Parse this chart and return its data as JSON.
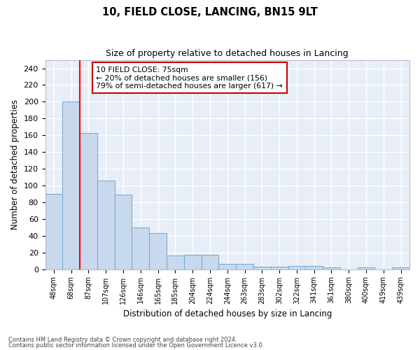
{
  "title": "10, FIELD CLOSE, LANCING, BN15 9LT",
  "subtitle": "Size of property relative to detached houses in Lancing",
  "xlabel": "Distribution of detached houses by size in Lancing",
  "ylabel": "Number of detached properties",
  "categories": [
    "48sqm",
    "68sqm",
    "87sqm",
    "107sqm",
    "126sqm",
    "146sqm",
    "165sqm",
    "185sqm",
    "204sqm",
    "224sqm",
    "244sqm",
    "263sqm",
    "283sqm",
    "302sqm",
    "322sqm",
    "341sqm",
    "361sqm",
    "380sqm",
    "400sqm",
    "419sqm",
    "439sqm"
  ],
  "values": [
    90,
    200,
    163,
    106,
    89,
    50,
    43,
    16,
    17,
    17,
    6,
    6,
    3,
    3,
    4,
    4,
    2,
    0,
    2,
    0,
    2
  ],
  "bar_color": "#c8d9ee",
  "bar_edge_color": "#7aadd4",
  "background_color": "#e8eef8",
  "grid_color": "#ffffff",
  "annotation_text": "10 FIELD CLOSE: 75sqm\n← 20% of detached houses are smaller (156)\n79% of semi-detached houses are larger (617) →",
  "annotation_box_color": "#ffffff",
  "annotation_box_edge_color": "#cc0000",
  "ylim": [
    0,
    250
  ],
  "yticks": [
    0,
    20,
    40,
    60,
    80,
    100,
    120,
    140,
    160,
    180,
    200,
    220,
    240
  ],
  "red_line_x": 1.5,
  "footnote1": "Contains HM Land Registry data © Crown copyright and database right 2024.",
  "footnote2": "Contains public sector information licensed under the Open Government Licence v3.0."
}
